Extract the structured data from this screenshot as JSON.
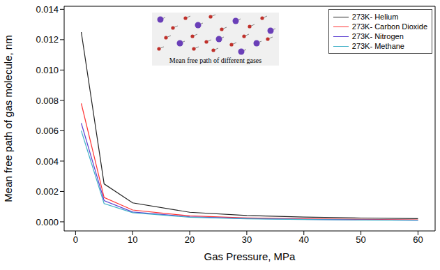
{
  "chart_data": {
    "type": "line",
    "x_label": "Gas Pressure, MPa",
    "y_label": "Mean free path of gas molecule, nm",
    "annotation": "Mean free path of different gases",
    "x": [
      1,
      5,
      10,
      20,
      30,
      40,
      50,
      60
    ],
    "series": [
      {
        "name": "273K- Helium",
        "color": "#222222",
        "values": [
          0.0125,
          0.0025,
          0.00125,
          0.00063,
          0.00042,
          0.00031,
          0.00025,
          0.00021
        ]
      },
      {
        "name": "273K- Carbon Dioxide",
        "color": "#ff3333",
        "values": [
          0.0078,
          0.0016,
          0.00078,
          0.00039,
          0.00026,
          0.0002,
          0.00016,
          0.00013
        ]
      },
      {
        "name": "273K- Nitrogen",
        "color": "#5b3fd1",
        "values": [
          0.0065,
          0.0014,
          0.00065,
          0.00033,
          0.00022,
          0.00016,
          0.00013,
          0.00011
        ]
      },
      {
        "name": "273K- Methane",
        "color": "#3fb0c8",
        "values": [
          0.006,
          0.0012,
          0.0006,
          0.0003,
          0.0002,
          0.00015,
          0.00012,
          0.0001
        ]
      }
    ],
    "xlim": [
      -2,
      63
    ],
    "xticks": [
      0,
      10,
      20,
      30,
      40,
      50,
      60
    ],
    "ylim": [
      -0.0006,
      0.0142
    ],
    "yticks": [
      {
        "value": 0,
        "label": "0.000"
      },
      0.002,
      0.004,
      0.006,
      0.008,
      {
        "value": 0.01,
        "label": "0.010"
      },
      0.012,
      0.014
    ],
    "legend": "upper right",
    "grid": false
  }
}
